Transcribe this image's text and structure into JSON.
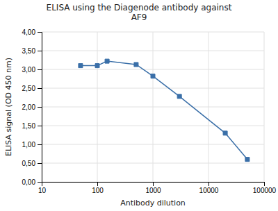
{
  "chart_data": {
    "type": "line",
    "title": "ELISA using the Diagenode antibody against\nAF9",
    "x_label": "Antibody dilution",
    "y_label": "ELISA signal (OD 450 nm)",
    "x": [
      50,
      100,
      150,
      500,
      1000,
      3000,
      20000,
      50000
    ],
    "values": [
      3.1,
      3.1,
      3.22,
      3.13,
      2.82,
      2.28,
      1.3,
      0.6
    ],
    "color": "#3a6fa8",
    "marker": "square",
    "line_style": "solid",
    "log": "x",
    "xlim": [
      10,
      100000
    ],
    "xticks": [
      10,
      100,
      1000,
      10000,
      100000
    ],
    "ylim": [
      0.0,
      4.0
    ],
    "yticks": [
      {
        "value": 0.0,
        "label": "0,00"
      },
      {
        "value": 0.5,
        "label": "0,50"
      },
      {
        "value": 1.0,
        "label": "1,00"
      },
      {
        "value": 1.5,
        "label": "1,50"
      },
      {
        "value": 2.0,
        "label": "2,00"
      },
      {
        "value": 2.5,
        "label": "2,50"
      },
      {
        "value": 3.0,
        "label": "3,00"
      },
      {
        "value": 3.5,
        "label": "3,50"
      },
      {
        "value": 4.0,
        "label": "4,00"
      }
    ],
    "grid": true
  }
}
